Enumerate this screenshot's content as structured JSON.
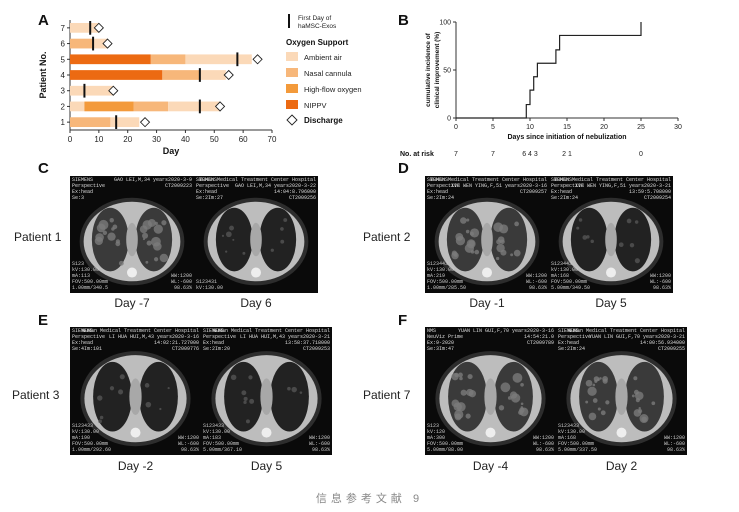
{
  "panels": {
    "A": {
      "letter": "A",
      "chart_data": {
        "type": "bar",
        "orientation": "horizontal-stacked",
        "xlabel": "Day",
        "ylabel": "Patient No.",
        "xlim": [
          0,
          70
        ],
        "xticks": [
          "0",
          "10",
          "20",
          "30",
          "40",
          "50",
          "60",
          "70"
        ],
        "categories": [
          "1",
          "2",
          "3",
          "4",
          "5",
          "6",
          "7"
        ],
        "series": [
          {
            "name": "Ambient air",
            "color": "#fbd9b8"
          },
          {
            "name": "Nasal cannula",
            "color": "#f7b77a"
          },
          {
            "name": "High-flow oxygen",
            "color": "#f39a3b"
          },
          {
            "name": "NIPPV",
            "color": "#ec6a12"
          }
        ],
        "rows": [
          {
            "patient": "1",
            "segments": [
              [
                0,
                14,
                "Nasal cannula"
              ],
              [
                14,
                24,
                "Ambient air"
              ]
            ],
            "exoso": 16,
            "discharge": 26
          },
          {
            "patient": "2",
            "segments": [
              [
                0,
                5,
                "Ambient air"
              ],
              [
                5,
                22,
                "High-flow oxygen"
              ],
              [
                22,
                34,
                "Nasal cannula"
              ],
              [
                34,
                52,
                "Ambient air"
              ]
            ],
            "exoso": 45,
            "discharge": 52
          },
          {
            "patient": "3",
            "segments": [
              [
                0,
                15,
                "Ambient air"
              ]
            ],
            "exoso": 5,
            "discharge": 15
          },
          {
            "patient": "4",
            "segments": [
              [
                0,
                32,
                "NIPPV"
              ],
              [
                32,
                45,
                "Nasal cannula"
              ],
              [
                45,
                54,
                "Ambient air"
              ]
            ],
            "exoso": 45,
            "discharge": 55
          },
          {
            "patient": "5",
            "segments": [
              [
                0,
                28,
                "NIPPV"
              ],
              [
                28,
                40,
                "Nasal cannula"
              ],
              [
                40,
                63,
                "Ambient air"
              ]
            ],
            "exoso": 58,
            "discharge": 65
          },
          {
            "patient": "6",
            "segments": [
              [
                0,
                8,
                "Nasal cannula"
              ],
              [
                8,
                13,
                "Ambient air"
              ]
            ],
            "exoso": 8,
            "discharge": 13
          },
          {
            "patient": "7",
            "segments": [
              [
                0,
                10,
                "Ambient air"
              ]
            ],
            "exoso": 7,
            "discharge": 10
          }
        ],
        "legend": {
          "exoso_label": "First Day of haMSC-Exos",
          "oxygen_title": "Oxygen Support",
          "discharge_label": "Discharge"
        }
      }
    },
    "B": {
      "letter": "B",
      "chart_data": {
        "type": "line",
        "step": true,
        "xlabel": "Days since initiation of nebulization",
        "ylabel": "cumulative incidence of clinical improvement (%)",
        "xlim": [
          0,
          30
        ],
        "ylim": [
          0,
          100
        ],
        "xticks": [
          "0",
          "5",
          "10",
          "15",
          "20",
          "25",
          "30"
        ],
        "yticks": [
          "0",
          "50",
          "100"
        ],
        "x": [
          0,
          9,
          9.5,
          10,
          10.5,
          11,
          13,
          13.5,
          14,
          25,
          25
        ],
        "y": [
          0,
          0,
          14,
          29,
          43,
          57,
          57,
          71,
          86,
          86,
          100
        ],
        "at_risk_label": "No. at risk",
        "at_risk": [
          {
            "x": 0,
            "value": "7"
          },
          {
            "x": 5,
            "value": "7"
          },
          {
            "x": 10,
            "value": "6 4 3"
          },
          {
            "x": 15,
            "value": "2 1"
          },
          {
            "x": 25,
            "value": "0"
          }
        ]
      }
    },
    "C": {
      "letter": "C",
      "patient": "Patient 1",
      "images": [
        {
          "day": "Day -7",
          "header": "SIEMENS\nPerspective\nEx:head\nSe:3",
          "title": "GAO LEI,M,34 years2020-3-9\nCT2009223",
          "footer": "S123\nkV:130.00\nmA:113\nFOV:500.00mm\n1.00mm/340.5",
          "footer_r": "WW:1200\nWL:-600\n98.63%"
        },
        {
          "day": "Day 6",
          "header": "SIEMENS\nPerspective\nEx:head\nSe:2Im:27",
          "title": "WuHan Medical Treatment Center Hospital\nGAO LEI,M,34 years2020-3-22\n14:04:8.796000\nCT2009256",
          "footer": "S123431\nkV:130.00",
          "footer_r": ""
        }
      ]
    },
    "D": {
      "letter": "D",
      "patient": "Patient 2",
      "images": [
        {
          "day": "Day -1",
          "header": "SIEMENS\nPerspective\nEx:head\nSe:2Im:24",
          "title": "WuHan Medical Treatment Center Hospital\nXIE WEN YING,F,51 years2020-3-16\nCT2009257",
          "footer": "S123443\nkV:130.00\nmA:219\nFOV:500.00mm\n1.00mm/285.50",
          "footer_r": "WW:1200\nWL:-600\n98.63%"
        },
        {
          "day": "Day 5",
          "header": "SIEMENS\nPerspective\nEx:head\nSe:2Im:24",
          "title": "WuHan Medical Treatment Center Hospital\nXIE WEN YING,F,51 years2020-3-21\n13:59:5.708000\nCT2009254",
          "footer": "S123443\nkV:130.00\nmA:168\nFOV:500.00mm\n5.00mm/349.50",
          "footer_r": "WW:1200\nWL:-600\n98.63%"
        }
      ]
    },
    "E": {
      "letter": "E",
      "patient": "Patient 3",
      "images": [
        {
          "day": "Day -2",
          "header": "SIEMENS\nPerspective\nEx:head\nSe:4Im:101",
          "title": "WuHan Medical Treatment Center Hospital\nLI HUA HUI,M,43 years2020-3-16\n14:02:21.727000\nCT2009776",
          "footer": "S123433\nkV:130.00\nmA:190\nFOV:500.00mm\n1.00mm/292.60",
          "footer_r": "WW:1200\nWL:-600\n98.63%"
        },
        {
          "day": "Day 5",
          "header": "SIEMENS\nPerspective\nEx:head\nSe:2Im:20",
          "title": "WuHan Medical Treatment Center Hospital\nLI HUA HUI,M,43 years2020-3-21\n13:58:37.718000\nCT2009253",
          "footer": "S123433\nkV:130.00\nmA:183\nFOV:500.00mm\n5.00mm/367.10",
          "footer_r": "WW:1200\nWL:-600\n98.63%"
        }
      ]
    },
    "F": {
      "letter": "F",
      "patient": "Patient 7",
      "images": [
        {
          "day": "Day -4",
          "header": "NMS\nNeuViz Prime\nEx:9-2020\nSe:3Im:47",
          "title": "YUAN LIN GUI,F,70 years2020-3-16\n14:54:21.0\nCT2009789",
          "footer": "S123\nkV:120\nmA:300\nFOV:500.00mm\n5.00mm/88.00",
          "footer_r": "WW:1200\nWL:-600\n98.63%"
        },
        {
          "day": "Day 2",
          "header": "SIEMENS\nPerspective\nEx:head\nSe:2Im:24",
          "title": "WuHan Medical Treatment Center Hospital\nYUAN LIN GUI,F,70 years2020-3-21\n14:00:56.934000\nCT2009255",
          "footer": "S123433\nkV:130.00\nmA:168\nFOV:500.00mm\n5.00mm/337.50",
          "footer_r": "WW:1200\nWL:-600\n98.63%"
        }
      ]
    }
  },
  "caption": "信息参考文献 9"
}
